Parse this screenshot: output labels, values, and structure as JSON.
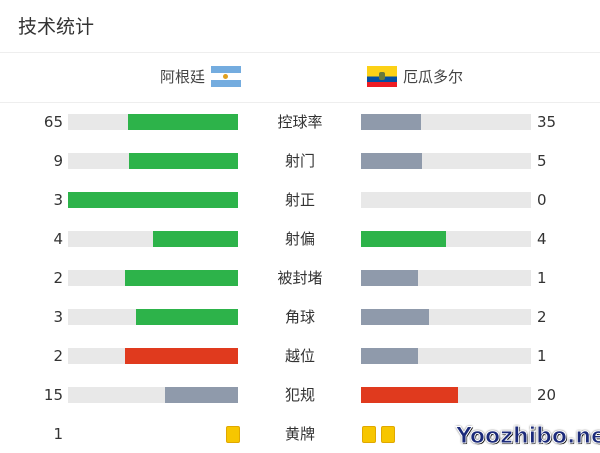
{
  "title": "技术统计",
  "home": {
    "name": "阿根廷",
    "flag": "argentina-flag"
  },
  "away": {
    "name": "厄瓜多尔",
    "flag": "ecuador-flag"
  },
  "colors": {
    "green": "#2db34a",
    "gray": "#8f9aab",
    "red": "#e03a1e",
    "track": "#e8e8e8",
    "yellow": "#f7c600"
  },
  "stats": [
    {
      "label": "控球率",
      "home": "65",
      "away": "35",
      "home_color": "green",
      "away_color": "gray"
    },
    {
      "label": "射门",
      "home": "9",
      "away": "5",
      "home_color": "green",
      "away_color": "gray"
    },
    {
      "label": "射正",
      "home": "3",
      "away": "0",
      "home_color": "green",
      "away_color": "gray"
    },
    {
      "label": "射偏",
      "home": "4",
      "away": "4",
      "home_color": "green",
      "away_color": "green"
    },
    {
      "label": "被封堵",
      "home": "2",
      "away": "1",
      "home_color": "green",
      "away_color": "gray"
    },
    {
      "label": "角球",
      "home": "3",
      "away": "2",
      "home_color": "green",
      "away_color": "gray"
    },
    {
      "label": "越位",
      "home": "2",
      "away": "1",
      "home_color": "red",
      "away_color": "gray"
    },
    {
      "label": "犯规",
      "home": "15",
      "away": "20",
      "home_color": "gray",
      "away_color": "red"
    }
  ],
  "yellow": {
    "label": "黄牌",
    "home": "1",
    "home_cards": 1,
    "away_cards": 2
  },
  "watermark": "Yoozhibo.net"
}
